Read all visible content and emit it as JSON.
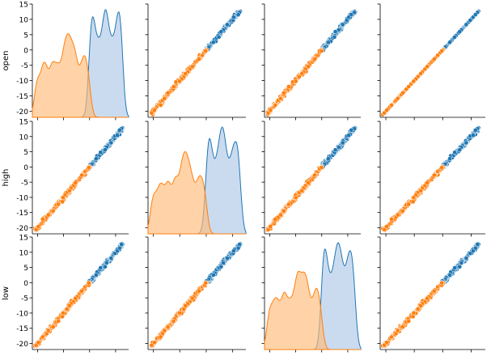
{
  "chart_data": {
    "type": "scatter",
    "subtype": "pairplot",
    "variables": [
      "open",
      "high",
      "low"
    ],
    "y_ticks": [
      -20,
      -15,
      -10,
      -5,
      0,
      5,
      10,
      15
    ],
    "value_range": [
      -22,
      15
    ],
    "series": [
      {
        "color": "#1f77b4",
        "fill": "#aec7e8",
        "range": [
          0,
          13
        ],
        "peak_at": 11.5
      },
      {
        "color": "#ff7f0e",
        "fill": "#ffbb78",
        "range": [
          -21,
          0
        ],
        "peak_at": -4.5
      }
    ],
    "grid": false,
    "legend": "none"
  }
}
